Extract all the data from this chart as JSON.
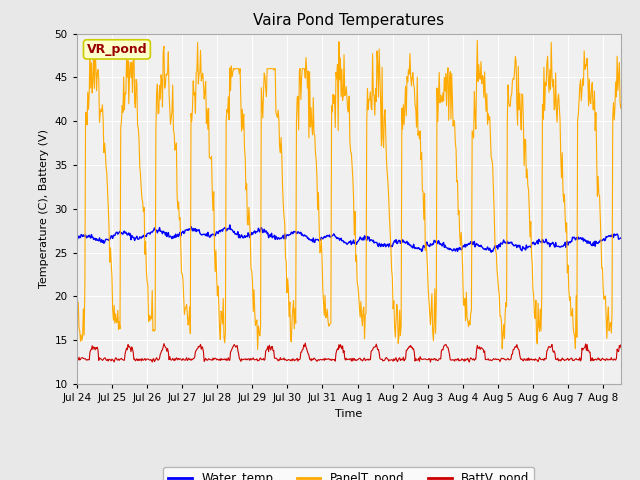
{
  "title": "Vaira Pond Temperatures",
  "xlabel": "Time",
  "ylabel": "Temperature (C), Battery (V)",
  "annotation_text": "VR_pond",
  "annotation_bg": "#ffffcc",
  "annotation_edge": "#cccc00",
  "annotation_text_color": "#990000",
  "ylim": [
    10,
    50
  ],
  "yticks": [
    10,
    15,
    20,
    25,
    30,
    35,
    40,
    45,
    50
  ],
  "line_colors": {
    "Water_temp": "#0000ff",
    "PanelT_pond": "#ffaa00",
    "BattV_pond": "#cc0000"
  },
  "bg_color": "#e8e8e8",
  "plot_bg_color": "#f0f0f0",
  "n_days": 15.5,
  "samples_per_day": 48,
  "x_tick_labels": [
    "Jul 24",
    "Jul 25",
    "Jul 26",
    "Jul 27",
    "Jul 28",
    "Jul 29",
    "Jul 30",
    "Jul 31",
    "Aug 1",
    "Aug 2",
    "Aug 3",
    "Aug 4",
    "Aug 5",
    "Aug 6",
    "Aug 7",
    "Aug 8"
  ],
  "figsize": [
    6.4,
    4.8
  ],
  "dpi": 100
}
